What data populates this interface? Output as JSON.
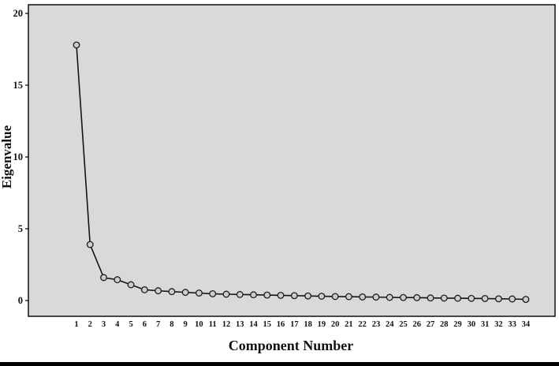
{
  "chart_data": {
    "type": "line",
    "title": "",
    "xlabel": "Component Number",
    "ylabel": "Eigenvalue",
    "x": [
      1,
      2,
      3,
      4,
      5,
      6,
      7,
      8,
      9,
      10,
      11,
      12,
      13,
      14,
      15,
      16,
      17,
      18,
      19,
      20,
      21,
      22,
      23,
      24,
      25,
      26,
      27,
      28,
      29,
      30,
      31,
      32,
      33,
      34
    ],
    "values": [
      17.8,
      3.9,
      1.6,
      1.45,
      1.1,
      0.75,
      0.68,
      0.62,
      0.57,
      0.52,
      0.47,
      0.44,
      0.42,
      0.4,
      0.38,
      0.36,
      0.34,
      0.32,
      0.3,
      0.28,
      0.27,
      0.25,
      0.24,
      0.22,
      0.21,
      0.2,
      0.18,
      0.17,
      0.16,
      0.15,
      0.14,
      0.12,
      0.11,
      0.08
    ],
    "ylim": [
      0,
      20
    ],
    "yticks": [
      0,
      5,
      10,
      15,
      20
    ],
    "grid": false,
    "legend": "none",
    "plot_bg": "#d9d9d9",
    "plot_border_color": "#000000",
    "line_color": "#141414",
    "marker": "open-circle",
    "marker_fill": "#cdcdcd",
    "marker_stroke": "#1c1c1c"
  }
}
